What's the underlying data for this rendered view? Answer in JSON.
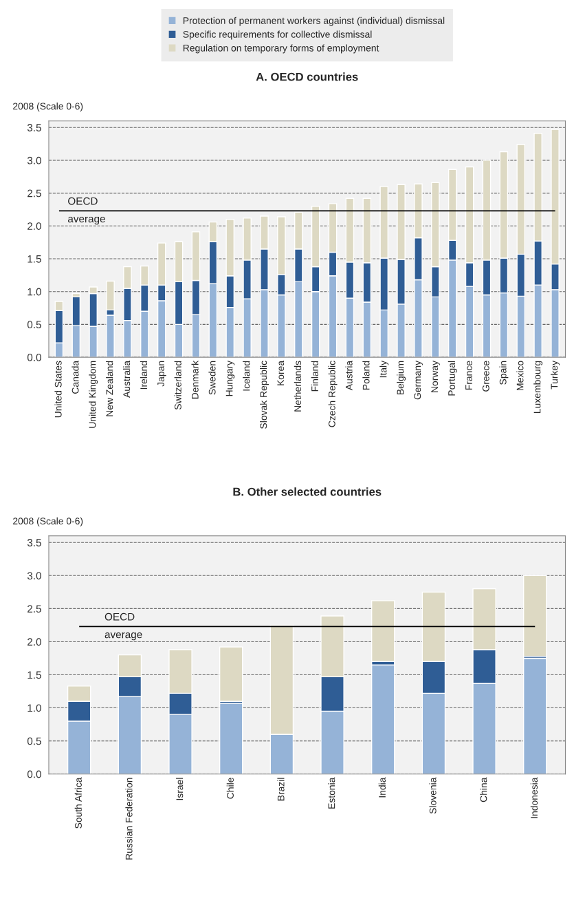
{
  "chart_data": [
    {
      "type": "bar",
      "stacked": true,
      "title": "A. OECD countries",
      "ylabel": "2008 (Scale 0-6)",
      "categories": [
        "United States",
        "Canada",
        "United Kingdom",
        "New Zealand",
        "Australia",
        "Ireland",
        "Japan",
        "Switzerland",
        "Denmark",
        "Sweden",
        "Hungary",
        "Iceland",
        "Slovak Republic",
        "Korea",
        "Netherlands",
        "Finland",
        "Czech Republic",
        "Austria",
        "Poland",
        "Italy",
        "Belgium",
        "Germany",
        "Norway",
        "Portugal",
        "France",
        "Greece",
        "Spain",
        "Mexico",
        "Luxembourg",
        "Turkey"
      ],
      "series": [
        {
          "name": "Protection of permanent workers against (individual) dismissal",
          "color": "#95b3d7",
          "values": [
            0.22,
            0.48,
            0.47,
            0.64,
            0.56,
            0.7,
            0.86,
            0.5,
            0.65,
            1.12,
            0.76,
            0.89,
            1.03,
            0.95,
            1.15,
            1.0,
            1.24,
            0.9,
            0.84,
            0.72,
            0.81,
            1.18,
            0.92,
            1.48,
            1.08,
            0.95,
            0.98,
            0.93,
            1.1,
            1.03
          ]
        },
        {
          "name": "Specific requirements for collective dismissal",
          "color": "#2f5d95",
          "values": [
            0.49,
            0.44,
            0.5,
            0.08,
            0.49,
            0.4,
            0.24,
            0.65,
            0.52,
            0.64,
            0.48,
            0.59,
            0.62,
            0.31,
            0.5,
            0.38,
            0.36,
            0.55,
            0.6,
            0.79,
            0.68,
            0.64,
            0.46,
            0.3,
            0.36,
            0.53,
            0.53,
            0.64,
            0.67,
            0.39
          ]
        },
        {
          "name": "Regulation on temporary forms of employment",
          "color": "#ddd9c3",
          "values": [
            0.14,
            0.05,
            0.1,
            0.44,
            0.33,
            0.29,
            0.64,
            0.61,
            0.74,
            0.3,
            0.86,
            0.64,
            0.5,
            0.88,
            0.56,
            0.92,
            0.74,
            0.97,
            0.98,
            1.09,
            1.14,
            0.82,
            1.28,
            1.08,
            1.46,
            1.52,
            1.62,
            1.67,
            1.64,
            2.05
          ]
        }
      ],
      "ylim": [
        0,
        3.6
      ],
      "yticks": [
        {
          "value": 0,
          "label": "0.0"
        },
        {
          "value": 0.5,
          "label": "0.5"
        },
        {
          "value": 1,
          "label": "1.0"
        },
        {
          "value": 1.5,
          "label": "1.5"
        },
        {
          "value": 2,
          "label": "2.0"
        },
        {
          "value": 2.5,
          "label": "2.5"
        },
        {
          "value": 3,
          "label": "3.0"
        },
        {
          "value": 3.5,
          "label": "3.5"
        }
      ],
      "grid": "y",
      "legend": "top",
      "ref_lines": [
        {
          "axis": "y",
          "value": 2.23,
          "label": "OECD average",
          "color": "#000000"
        }
      ]
    },
    {
      "type": "bar",
      "stacked": true,
      "title": "B. Other selected countries",
      "ylabel": "2008 (Scale 0-6)",
      "categories": [
        "South Africa",
        "Russian Federation",
        "Israel",
        "Chile",
        "Brazil",
        "Estonia",
        "India",
        "Slovenia",
        "China",
        "Indonesia"
      ],
      "series": [
        {
          "color": "#95b3d7",
          "values": [
            0.8,
            1.17,
            0.9,
            1.07,
            0.6,
            0.95,
            1.65,
            1.22,
            1.37,
            1.75
          ]
        },
        {
          "color": "#2f5d95",
          "values": [
            0.3,
            0.3,
            0.32,
            0.03,
            null,
            0.52,
            0.05,
            0.48,
            0.51,
            0.03
          ]
        },
        {
          "color": "#ddd9c3",
          "values": [
            0.23,
            0.33,
            0.66,
            0.82,
            1.65,
            0.92,
            0.92,
            1.05,
            0.92,
            1.22
          ]
        }
      ],
      "ylim": [
        0,
        3.6
      ],
      "yticks": [
        {
          "value": 0,
          "label": "0.0"
        },
        {
          "value": 0.5,
          "label": "0.5"
        },
        {
          "value": 1,
          "label": "1.0"
        },
        {
          "value": 1.5,
          "label": "1.5"
        },
        {
          "value": 2,
          "label": "2.0"
        },
        {
          "value": 2.5,
          "label": "2.5"
        },
        {
          "value": 3,
          "label": "3.0"
        },
        {
          "value": 3.5,
          "label": "3.5"
        }
      ],
      "grid": "y",
      "ref_lines": [
        {
          "axis": "y",
          "value": 2.23,
          "label": "OECD average",
          "color": "#000000"
        }
      ]
    }
  ]
}
